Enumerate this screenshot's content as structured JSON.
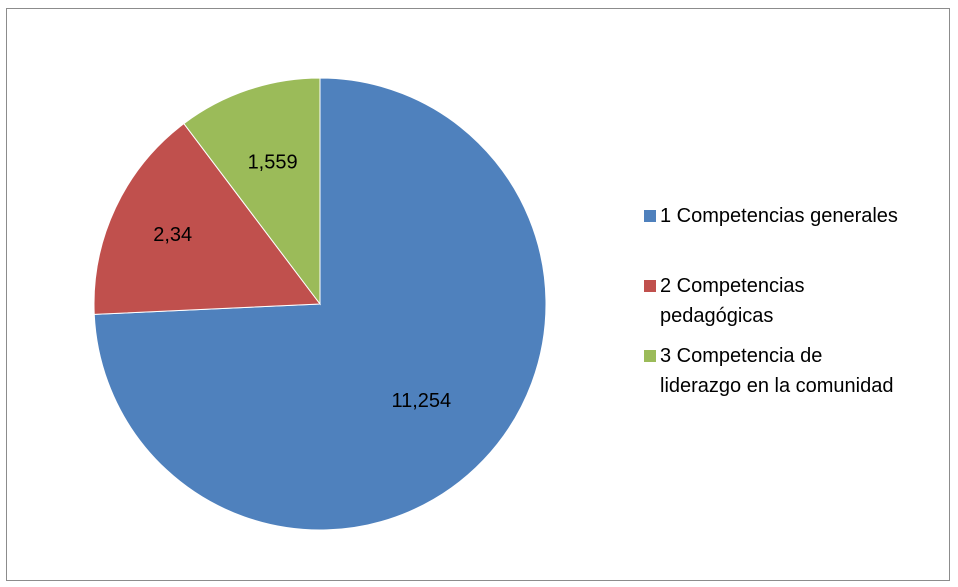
{
  "chart_data": {
    "type": "pie",
    "title": "",
    "categories": [
      "1 Competencias generales",
      "2 Competencias pedagógicas",
      "3 Competencia de liderazgo en la comunidad"
    ],
    "legend_lines": [
      [
        "1 Competencias generales"
      ],
      [
        "2 Competencias",
        "pedagógicas"
      ],
      [
        "3 Competencia de",
        "liderazgo en la comunidad"
      ]
    ],
    "values": [
      11.254,
      2.34,
      1.559
    ],
    "data_labels": [
      "11,254",
      "2,34",
      "1,559"
    ],
    "colors": [
      "#4f81bd",
      "#c0504d",
      "#9bbb59"
    ],
    "start": "12 o'clock",
    "direction": "clockwise",
    "legend_position": "right"
  }
}
